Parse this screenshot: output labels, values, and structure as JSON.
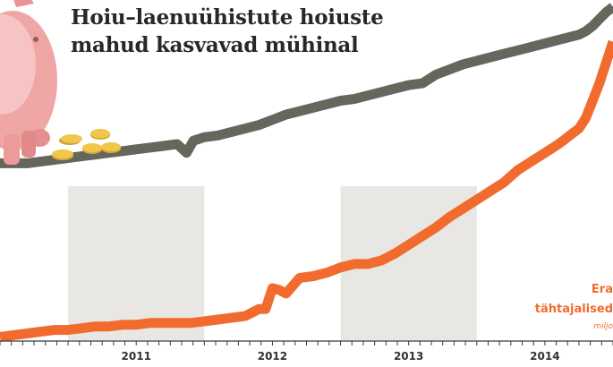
{
  "title": "Hoiu–laenuühistute hoiuste mahud kasvavad mühinal",
  "series_labels": {
    "orange_line1": "Era",
    "orange_line2": "tähtajalised",
    "unit": "miljo"
  },
  "colors": {
    "gray_series": "#66665d",
    "orange_series": "#f26b2e",
    "year_band": "#e8e7e3",
    "axis": "#3b3b3b",
    "title_text": "#2a2826"
  },
  "icons": [
    "piggy-bank-icon",
    "coin-stack-icon"
  ],
  "chart_data": {
    "type": "line",
    "title": "Hoiu–laenuühistute hoiuste mahud kasvavad mühinal",
    "x_ticks": [
      "2011",
      "2012",
      "2013",
      "2014"
    ],
    "x_start": 2010.5,
    "x_end": 2015.0,
    "shaded_periods": [
      [
        2011,
        2012
      ],
      [
        2013,
        2014
      ]
    ],
    "ylim": [
      0,
      100
    ],
    "grid": false,
    "series": [
      {
        "color": "#66665d",
        "x": [
          2010.5,
          2010.6,
          2010.7,
          2010.8,
          2010.9,
          2011.0,
          2011.1,
          2011.2,
          2011.3,
          2011.4,
          2011.5,
          2011.6,
          2011.7,
          2011.8,
          2011.87,
          2011.92,
          2011.96,
          2012.0,
          2012.1,
          2012.2,
          2012.3,
          2012.4,
          2012.5,
          2012.6,
          2012.7,
          2012.8,
          2012.9,
          2013.0,
          2013.1,
          2013.2,
          2013.3,
          2013.4,
          2013.5,
          2013.6,
          2013.7,
          2013.8,
          2013.9,
          2014.0,
          2014.1,
          2014.2,
          2014.3,
          2014.4,
          2014.5,
          2014.6,
          2014.7,
          2014.75,
          2014.8,
          2014.85,
          2014.9,
          2014.95,
          2015.0
        ],
        "y": [
          53,
          53,
          53,
          53.5,
          54,
          54.5,
          55,
          55.5,
          56,
          56.5,
          57,
          57.5,
          58,
          58.5,
          56,
          59.5,
          60,
          60.5,
          61,
          62,
          63,
          64,
          65.5,
          67,
          68,
          69,
          70,
          71,
          71.5,
          72.5,
          73.5,
          74.5,
          75.5,
          76,
          78.5,
          80,
          81.5,
          82.5,
          83.5,
          84.5,
          85.5,
          86.5,
          87.5,
          88.5,
          89.5,
          90,
          91,
          92.5,
          94.5,
          96.5,
          98
        ]
      },
      {
        "color": "#f26b2e",
        "x": [
          2010.5,
          2010.6,
          2010.7,
          2010.8,
          2010.9,
          2011.0,
          2011.1,
          2011.2,
          2011.3,
          2011.4,
          2011.5,
          2011.6,
          2011.7,
          2011.8,
          2011.9,
          2012.0,
          2012.1,
          2012.2,
          2012.3,
          2012.35,
          2012.4,
          2012.45,
          2012.5,
          2012.55,
          2012.6,
          2012.7,
          2012.8,
          2012.9,
          2013.0,
          2013.1,
          2013.2,
          2013.3,
          2013.4,
          2013.5,
          2013.6,
          2013.7,
          2013.8,
          2013.9,
          2014.0,
          2014.1,
          2014.2,
          2014.3,
          2014.4,
          2014.5,
          2014.6,
          2014.65,
          2014.7,
          2014.75,
          2014.8,
          2014.85,
          2014.9,
          2014.95,
          2015.0
        ],
        "y": [
          3,
          3.5,
          4,
          4.5,
          5,
          5,
          5.5,
          6,
          6,
          6.5,
          6.5,
          7,
          7,
          7,
          7,
          7.5,
          8,
          8.5,
          9,
          10,
          11,
          11,
          17,
          16.5,
          15.5,
          20,
          20.5,
          21.5,
          23,
          24,
          24,
          25,
          27,
          29.5,
          32,
          34.5,
          37.5,
          40,
          42.5,
          45,
          47.5,
          51,
          53.5,
          56,
          58.5,
          60,
          61.5,
          63,
          66,
          71,
          76,
          82,
          88
        ]
      }
    ]
  }
}
